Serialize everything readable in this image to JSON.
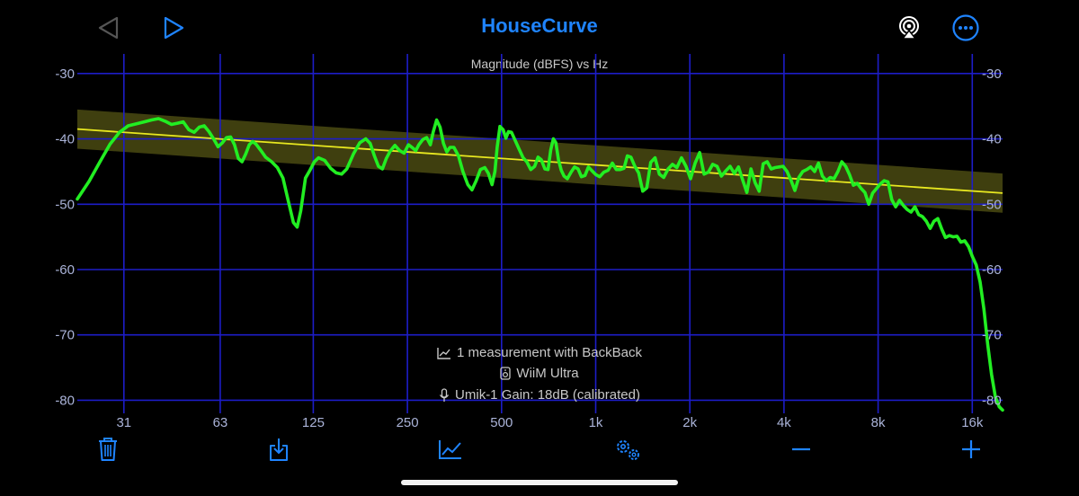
{
  "header": {
    "title": "HouseCurve",
    "icons": {
      "back": "triangle-left-icon",
      "forward": "triangle-right-icon",
      "airplay": "airplay-icon",
      "more": "ellipsis-circle-icon"
    }
  },
  "chart_data": {
    "type": "line",
    "title": "Magnitude (dBFS) vs Hz",
    "x_scale": "log",
    "xlim": [
      22,
      20000
    ],
    "ylim": [
      -82,
      -27
    ],
    "x_ticks": [
      {
        "v": 31,
        "label": "31"
      },
      {
        "v": 63,
        "label": "63"
      },
      {
        "v": 125,
        "label": "125"
      },
      {
        "v": 250,
        "label": "250"
      },
      {
        "v": 500,
        "label": "500"
      },
      {
        "v": 1000,
        "label": "1k"
      },
      {
        "v": 2000,
        "label": "2k"
      },
      {
        "v": 4000,
        "label": "4k"
      },
      {
        "v": 8000,
        "label": "8k"
      },
      {
        "v": 16000,
        "label": "16k"
      }
    ],
    "y_ticks": [
      {
        "v": -30,
        "label": "-30"
      },
      {
        "v": -40,
        "label": "-40"
      },
      {
        "v": -50,
        "label": "-50"
      },
      {
        "v": -60,
        "label": "-60"
      },
      {
        "v": -70,
        "label": "-70"
      },
      {
        "v": -80,
        "label": "-80"
      }
    ],
    "grid": true,
    "colors": {
      "grid": "#1d1dc8",
      "measurement": "#22ee22",
      "target": "#e8e820",
      "tolerance": "#4a4a12"
    },
    "target": {
      "points": [
        [
          22,
          -38.5
        ],
        [
          20000,
          -48.3
        ]
      ],
      "tolerance_db": 3
    },
    "series": [
      {
        "points": [
          [
            22,
            -49.2
          ],
          [
            24,
            -46.5
          ],
          [
            26,
            -43.5
          ],
          [
            28,
            -40.8
          ],
          [
            30,
            -39.0
          ],
          [
            32,
            -38.0
          ],
          [
            34,
            -37.7
          ],
          [
            36,
            -37.4
          ],
          [
            38,
            -37.1
          ],
          [
            40,
            -36.9
          ],
          [
            42,
            -37.3
          ],
          [
            44,
            -37.8
          ],
          [
            46,
            -37.6
          ],
          [
            48,
            -37.4
          ],
          [
            50,
            -38.6
          ],
          [
            52,
            -39.0
          ],
          [
            54,
            -38.2
          ],
          [
            56,
            -38.0
          ],
          [
            58,
            -38.9
          ],
          [
            60,
            -40.0
          ],
          [
            62,
            -41.2
          ],
          [
            64,
            -40.6
          ],
          [
            66,
            -39.8
          ],
          [
            68,
            -39.7
          ],
          [
            70,
            -40.9
          ],
          [
            72,
            -43.0
          ],
          [
            74,
            -43.5
          ],
          [
            76,
            -42.3
          ],
          [
            78,
            -40.9
          ],
          [
            80,
            -40.4
          ],
          [
            82,
            -40.8
          ],
          [
            85,
            -41.8
          ],
          [
            88,
            -42.8
          ],
          [
            92,
            -43.5
          ],
          [
            96,
            -44.4
          ],
          [
            100,
            -46.0
          ],
          [
            104,
            -49.5
          ],
          [
            108,
            -52.8
          ],
          [
            111,
            -53.5
          ],
          [
            114,
            -51.0
          ],
          [
            118,
            -46.0
          ],
          [
            122,
            -44.8
          ],
          [
            126,
            -43.5
          ],
          [
            130,
            -42.9
          ],
          [
            136,
            -43.3
          ],
          [
            142,
            -44.5
          ],
          [
            148,
            -45.2
          ],
          [
            154,
            -45.4
          ],
          [
            160,
            -44.6
          ],
          [
            168,
            -42.3
          ],
          [
            176,
            -40.6
          ],
          [
            184,
            -40.0
          ],
          [
            190,
            -40.7
          ],
          [
            196,
            -42.6
          ],
          [
            202,
            -44.2
          ],
          [
            208,
            -44.6
          ],
          [
            214,
            -43.0
          ],
          [
            220,
            -41.9
          ],
          [
            228,
            -41.0
          ],
          [
            236,
            -41.8
          ],
          [
            244,
            -42.2
          ],
          [
            252,
            -40.9
          ],
          [
            260,
            -41.4
          ],
          [
            266,
            -41.8
          ],
          [
            272,
            -40.9
          ],
          [
            280,
            -40.1
          ],
          [
            288,
            -39.8
          ],
          [
            296,
            -40.9
          ],
          [
            302,
            -39.0
          ],
          [
            310,
            -37.1
          ],
          [
            318,
            -38.2
          ],
          [
            326,
            -40.7
          ],
          [
            334,
            -42.0
          ],
          [
            342,
            -41.3
          ],
          [
            352,
            -41.3
          ],
          [
            364,
            -42.6
          ],
          [
            376,
            -45.0
          ],
          [
            390,
            -47.0
          ],
          [
            402,
            -47.8
          ],
          [
            414,
            -46.5
          ],
          [
            428,
            -44.7
          ],
          [
            442,
            -44.4
          ],
          [
            454,
            -45.3
          ],
          [
            466,
            -47.0
          ],
          [
            476,
            -45.0
          ],
          [
            484,
            -41.3
          ],
          [
            494,
            -38.1
          ],
          [
            506,
            -38.6
          ],
          [
            516,
            -39.9
          ],
          [
            526,
            -38.9
          ],
          [
            538,
            -39.0
          ],
          [
            552,
            -40.2
          ],
          [
            568,
            -41.5
          ],
          [
            586,
            -42.9
          ],
          [
            602,
            -43.5
          ],
          [
            620,
            -44.7
          ],
          [
            638,
            -44.2
          ],
          [
            654,
            -42.8
          ],
          [
            670,
            -43.2
          ],
          [
            688,
            -44.6
          ],
          [
            704,
            -44.7
          ],
          [
            718,
            -41.7
          ],
          [
            732,
            -40.0
          ],
          [
            746,
            -40.6
          ],
          [
            760,
            -43.2
          ],
          [
            776,
            -44.8
          ],
          [
            792,
            -45.7
          ],
          [
            812,
            -46.1
          ],
          [
            834,
            -45.1
          ],
          [
            856,
            -44.3
          ],
          [
            878,
            -44.6
          ],
          [
            900,
            -45.8
          ],
          [
            924,
            -45.6
          ],
          [
            948,
            -44.3
          ],
          [
            974,
            -44.9
          ],
          [
            1002,
            -45.5
          ],
          [
            1030,
            -45.8
          ],
          [
            1062,
            -45.1
          ],
          [
            1096,
            -44.8
          ],
          [
            1130,
            -43.7
          ],
          [
            1164,
            -44.7
          ],
          [
            1198,
            -44.7
          ],
          [
            1232,
            -44.5
          ],
          [
            1262,
            -42.6
          ],
          [
            1296,
            -42.8
          ],
          [
            1334,
            -44.2
          ],
          [
            1372,
            -45.2
          ],
          [
            1414,
            -48.0
          ],
          [
            1456,
            -47.5
          ],
          [
            1500,
            -43.6
          ],
          [
            1548,
            -42.9
          ],
          [
            1598,
            -45.4
          ],
          [
            1650,
            -45.9
          ],
          [
            1704,
            -44.6
          ],
          [
            1760,
            -43.9
          ],
          [
            1818,
            -44.4
          ],
          [
            1880,
            -42.9
          ],
          [
            1944,
            -44.2
          ],
          [
            2010,
            -46.1
          ],
          [
            2080,
            -43.7
          ],
          [
            2150,
            -42.1
          ],
          [
            2220,
            -45.4
          ],
          [
            2292,
            -45.1
          ],
          [
            2366,
            -43.9
          ],
          [
            2444,
            -44.2
          ],
          [
            2524,
            -45.7
          ],
          [
            2606,
            -44.9
          ],
          [
            2690,
            -44.2
          ],
          [
            2776,
            -45.3
          ],
          [
            2862,
            -44.3
          ],
          [
            2952,
            -46.3
          ],
          [
            3044,
            -48.2
          ],
          [
            3138,
            -44.6
          ],
          [
            3234,
            -46.7
          ],
          [
            3332,
            -48.0
          ],
          [
            3432,
            -43.8
          ],
          [
            3534,
            -43.5
          ],
          [
            3640,
            -44.6
          ],
          [
            3748,
            -44.4
          ],
          [
            3860,
            -44.3
          ],
          [
            3974,
            -44.2
          ],
          [
            4090,
            -45.0
          ],
          [
            4210,
            -46.3
          ],
          [
            4334,
            -47.9
          ],
          [
            4462,
            -45.9
          ],
          [
            4594,
            -45.0
          ],
          [
            4730,
            -44.7
          ],
          [
            4868,
            -44.3
          ],
          [
            5012,
            -45.0
          ],
          [
            5158,
            -43.7
          ],
          [
            5308,
            -45.7
          ],
          [
            5462,
            -46.4
          ],
          [
            5620,
            -45.9
          ],
          [
            5784,
            -46.1
          ],
          [
            5952,
            -45.0
          ],
          [
            6124,
            -43.5
          ],
          [
            6300,
            -44.2
          ],
          [
            6482,
            -45.5
          ],
          [
            6668,
            -47.1
          ],
          [
            6860,
            -46.8
          ],
          [
            7058,
            -47.6
          ],
          [
            7260,
            -48.2
          ],
          [
            7470,
            -50.0
          ],
          [
            7684,
            -48.3
          ],
          [
            7904,
            -47.6
          ],
          [
            8130,
            -46.9
          ],
          [
            8362,
            -46.4
          ],
          [
            8602,
            -46.6
          ],
          [
            8850,
            -49.3
          ],
          [
            9104,
            -50.4
          ],
          [
            9366,
            -49.4
          ],
          [
            9634,
            -50.2
          ],
          [
            9910,
            -50.8
          ],
          [
            10194,
            -51.2
          ],
          [
            10486,
            -50.4
          ],
          [
            10786,
            -51.6
          ],
          [
            11094,
            -51.9
          ],
          [
            11410,
            -52.6
          ],
          [
            11736,
            -53.7
          ],
          [
            12072,
            -52.6
          ],
          [
            12418,
            -52.2
          ],
          [
            12774,
            -53.8
          ],
          [
            13140,
            -55.1
          ],
          [
            13516,
            -54.8
          ],
          [
            13904,
            -55.0
          ],
          [
            14302,
            -54.9
          ],
          [
            14712,
            -55.8
          ],
          [
            15134,
            -55.6
          ],
          [
            15568,
            -56.5
          ],
          [
            16014,
            -58.0
          ],
          [
            16472,
            -59.3
          ],
          [
            16944,
            -61.9
          ],
          [
            17430,
            -66.0
          ],
          [
            17928,
            -71.5
          ],
          [
            18442,
            -76.0
          ],
          [
            18970,
            -79.5
          ],
          [
            19512,
            -81.0
          ],
          [
            20000,
            -81.5
          ]
        ]
      }
    ]
  },
  "info": {
    "measurement_line": "1 measurement with BackBack",
    "device_line": "WiiM Ultra",
    "mic_line": "Umik-1  Gain: 18dB (calibrated)",
    "icons": {
      "measurement": "line-chart-icon",
      "device": "speaker-icon",
      "mic": "microphone-icon"
    }
  },
  "toolbar": {
    "icons": {
      "delete": "trash-icon",
      "import": "download-tray-icon",
      "chart": "line-chart-icon",
      "settings": "gears-icon",
      "zoom_out": "minus-icon",
      "zoom_in": "plus-icon"
    }
  }
}
